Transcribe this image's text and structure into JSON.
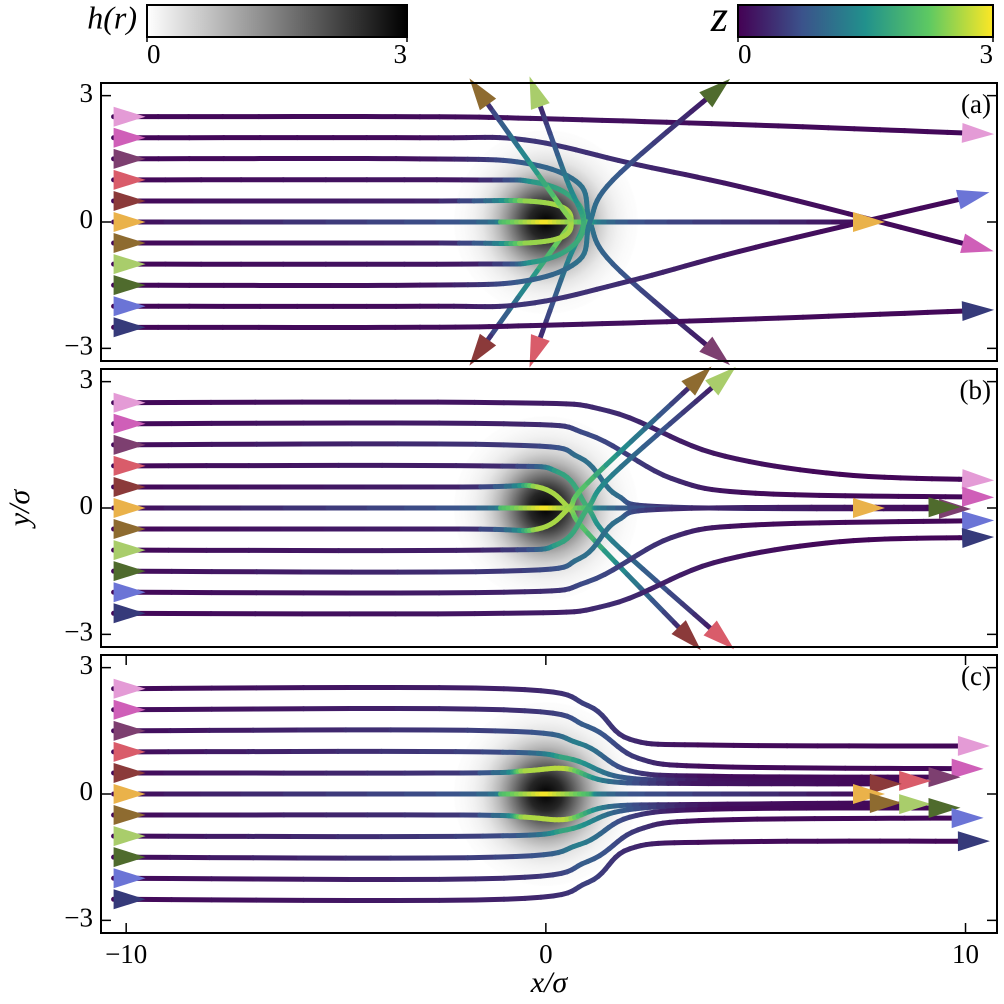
{
  "colorbars": [
    {
      "label": "h(r)",
      "colors": [
        "#ffffff",
        "#000000"
      ],
      "ticks": [
        0,
        3
      ]
    },
    {
      "label": "z",
      "colors": [
        "#440154",
        "#3b528b",
        "#21918c",
        "#5ec962",
        "#fde725"
      ],
      "ticks": [
        0,
        3
      ]
    }
  ],
  "chart_data": [
    {
      "type": "line",
      "label": "(a)",
      "xlim": [
        -10.6,
        10.75
      ],
      "ylim": [
        -3.3,
        3.3
      ],
      "yticks": [
        {
          "value": -3,
          "label": "−3"
        },
        0,
        3
      ],
      "series": [
        {
          "color": "#e49bd6",
          "x": [
            -10.3,
            -3,
            0,
            5,
            10.3
          ],
          "y": [
            2.5,
            2.5,
            2.45,
            2.3,
            2.1
          ],
          "z": [
            0.05,
            0.1,
            0.15,
            0.1,
            0.05
          ]
        },
        {
          "color": "#cf5fb8",
          "x": [
            -10.3,
            -3,
            -0.5,
            2,
            5,
            10.3
          ],
          "y": [
            2,
            2,
            1.95,
            1.4,
            0.75,
            -0.6
          ],
          "z": [
            0.05,
            0.1,
            0.5,
            0.4,
            0.15,
            0.05
          ]
        },
        {
          "color": "#7d3f70",
          "x": [
            -10.3,
            -3,
            -0.5,
            0.8,
            1.05,
            1.6,
            4.1
          ],
          "y": [
            1.5,
            1.5,
            1.4,
            0.9,
            0,
            -1,
            -3.15
          ],
          "z": [
            0.05,
            0.15,
            0.9,
            1.1,
            1.2,
            0.9,
            0.1
          ]
        },
        {
          "color": "#d95c6a",
          "x": [
            -10.3,
            -2,
            -0.3,
            0.6,
            0.9,
            0.5,
            -0.26
          ],
          "y": [
            1,
            1,
            0.95,
            0.6,
            0,
            -1,
            -3.1
          ],
          "z": [
            0.05,
            0.2,
            1.6,
            1.8,
            1.9,
            1.3,
            0.1
          ]
        },
        {
          "color": "#8b3a3a",
          "x": [
            -10.3,
            -2.5,
            -0.5,
            0.4,
            0.6,
            0.3,
            -1.6
          ],
          "y": [
            0.5,
            0.5,
            0.5,
            0.35,
            0,
            -0.45,
            -3.1
          ],
          "z": [
            0.05,
            0.3,
            2.5,
            2.6,
            2.6,
            2.4,
            0.1
          ]
        },
        {
          "color": "#eab24a",
          "x": [
            -10.3,
            -2,
            -1,
            0,
            1,
            2,
            7.7
          ],
          "y": [
            0,
            0,
            0,
            0,
            0,
            0,
            0
          ],
          "z": [
            0.05,
            0.8,
            2.1,
            3,
            2.1,
            0.8,
            0.05
          ]
        },
        {
          "color": "#8e6b30",
          "x": [
            -10.3,
            -2.5,
            -0.5,
            0.4,
            0.6,
            0.3,
            -1.6
          ],
          "y": [
            -0.5,
            -0.5,
            -0.5,
            -0.35,
            0,
            0.45,
            3.1
          ],
          "z": [
            0.05,
            0.3,
            2.5,
            2.6,
            2.6,
            2.4,
            0.1
          ]
        },
        {
          "color": "#a9cd6b",
          "x": [
            -10.3,
            -2,
            -0.3,
            0.6,
            0.9,
            0.5,
            -0.26
          ],
          "y": [
            -1,
            -1,
            -0.95,
            -0.6,
            0,
            1,
            3.1
          ],
          "z": [
            0.05,
            0.2,
            1.6,
            1.8,
            1.9,
            1.3,
            0.1
          ]
        },
        {
          "color": "#4f6b2d",
          "x": [
            -10.3,
            -3,
            -0.5,
            0.8,
            1.05,
            1.6,
            4.1
          ],
          "y": [
            -1.5,
            -1.5,
            -1.4,
            -0.9,
            0,
            1,
            3.15
          ],
          "z": [
            0.05,
            0.15,
            0.9,
            1.1,
            1.2,
            0.9,
            0.1
          ]
        },
        {
          "color": "#6b74d6",
          "x": [
            -10.3,
            -3,
            -0.5,
            2,
            5,
            10.2
          ],
          "y": [
            -2,
            -2,
            -1.95,
            -1.4,
            -0.6,
            0.62
          ],
          "z": [
            0.05,
            0.1,
            0.5,
            0.4,
            0.15,
            0.05
          ]
        },
        {
          "color": "#363a7a",
          "x": [
            -10.3,
            -3,
            0,
            5,
            10.3
          ],
          "y": [
            -2.5,
            -2.5,
            -2.45,
            -2.3,
            -2.1
          ],
          "z": [
            0.05,
            0.1,
            0.15,
            0.1,
            0.05
          ]
        }
      ]
    },
    {
      "type": "line",
      "label": "(b)",
      "ylabel": "y/σ",
      "xlim": [
        -10.6,
        10.75
      ],
      "ylim": [
        -3.3,
        3.3
      ],
      "yticks": [
        {
          "value": -3,
          "label": "−3"
        },
        0,
        3
      ],
      "series": [
        {
          "color": "#e49bd6",
          "x": [
            -10.3,
            -1,
            1.5,
            4,
            7,
            10.3
          ],
          "y": [
            2.5,
            2.5,
            2.3,
            1.3,
            0.8,
            0.67
          ],
          "z": [
            0.05,
            0.2,
            0.4,
            0.2,
            0.05,
            0.05
          ]
        },
        {
          "color": "#cf5fb8",
          "x": [
            -10.3,
            -1,
            1,
            3,
            5,
            10.3
          ],
          "y": [
            2,
            2,
            1.75,
            0.7,
            0.35,
            0.26
          ],
          "z": [
            0.05,
            0.3,
            0.7,
            0.4,
            0.1,
            0.05
          ]
        },
        {
          "color": "#7d3f70",
          "x": [
            -10.3,
            -1,
            0.8,
            1.7,
            3,
            9.75
          ],
          "y": [
            1.5,
            1.5,
            1.2,
            0.3,
            0.02,
            -0.02
          ],
          "z": [
            0.05,
            0.5,
            1.1,
            1.1,
            0.4,
            0.05
          ]
        },
        {
          "color": "#d95c6a",
          "x": [
            -10.3,
            -1.5,
            0.3,
            1,
            1.6,
            4.2
          ],
          "y": [
            1,
            1,
            0.85,
            0,
            -0.8,
            -3.1
          ],
          "z": [
            0.05,
            0.3,
            1.7,
            1.9,
            1.3,
            0.1
          ]
        },
        {
          "color": "#8b3a3a",
          "x": [
            -10.3,
            -2,
            -0.2,
            0.55,
            1,
            3.43
          ],
          "y": [
            0.5,
            0.5,
            0.5,
            0,
            -0.6,
            -3.1
          ],
          "z": [
            0.05,
            0.3,
            2.6,
            2.6,
            2.1,
            0.1
          ]
        },
        {
          "color": "#eab24a",
          "x": [
            -10.3,
            -2,
            -1,
            0,
            1,
            2,
            7.7
          ],
          "y": [
            0,
            0,
            0,
            0,
            0,
            0,
            0
          ],
          "z": [
            0.05,
            0.8,
            2.1,
            3,
            2.1,
            0.8,
            0.05
          ]
        },
        {
          "color": "#8e6b30",
          "x": [
            -10.3,
            -2,
            -0.2,
            0.55,
            1,
            3.67
          ],
          "y": [
            -0.5,
            -0.5,
            -0.5,
            0,
            0.6,
            3.1
          ],
          "z": [
            0.05,
            0.3,
            2.6,
            2.6,
            2.1,
            0.1
          ]
        },
        {
          "color": "#a9cd6b",
          "x": [
            -10.3,
            -1.5,
            0.3,
            1,
            1.6,
            4.24
          ],
          "y": [
            -1,
            -1,
            -0.85,
            0,
            0.8,
            3.1
          ],
          "z": [
            0.05,
            0.3,
            1.7,
            1.9,
            1.3,
            0.1
          ]
        },
        {
          "color": "#4f6b2d",
          "x": [
            -10.3,
            -1,
            0.8,
            1.7,
            3,
            9.5
          ],
          "y": [
            -1.5,
            -1.5,
            -1.2,
            -0.3,
            -0.02,
            0.02
          ],
          "z": [
            0.05,
            0.5,
            1.1,
            1.1,
            0.4,
            0.05
          ]
        },
        {
          "color": "#6b74d6",
          "x": [
            -10.3,
            -1,
            1,
            3,
            5,
            10.3
          ],
          "y": [
            -2,
            -2,
            -1.75,
            -0.7,
            -0.4,
            -0.3
          ],
          "z": [
            0.05,
            0.3,
            0.7,
            0.4,
            0.1,
            0.05
          ]
        },
        {
          "color": "#363a7a",
          "x": [
            -10.3,
            -1,
            1.5,
            4,
            7,
            10.3
          ],
          "y": [
            -2.5,
            -2.5,
            -2.3,
            -1.3,
            -0.8,
            -0.7
          ],
          "z": [
            0.05,
            0.2,
            0.4,
            0.2,
            0.05,
            0.05
          ]
        }
      ]
    },
    {
      "type": "line",
      "label": "(c)",
      "xlabel": "x/σ",
      "xlim": [
        -10.6,
        10.75
      ],
      "ylim": [
        -3.3,
        3.3
      ],
      "xticks": [
        {
          "value": -10,
          "label": "−10"
        },
        0,
        10
      ],
      "yticks": [
        {
          "value": -3,
          "label": "−3"
        },
        0,
        3
      ],
      "series": [
        {
          "color": "#e49bd6",
          "x": [
            -10.3,
            -1,
            1,
            2,
            4,
            10.2
          ],
          "y": [
            2.5,
            2.5,
            2.1,
            1.3,
            1.16,
            1.14
          ],
          "z": [
            0.05,
            0.3,
            0.6,
            0.4,
            0.1,
            0.05
          ]
        },
        {
          "color": "#cf5fb8",
          "x": [
            -10.3,
            -1,
            1,
            2.2,
            4,
            10.05
          ],
          "y": [
            2,
            2,
            1.6,
            0.85,
            0.65,
            0.6
          ],
          "z": [
            0.05,
            0.4,
            0.9,
            0.5,
            0.1,
            0.05
          ]
        },
        {
          "color": "#7d3f70",
          "x": [
            -10.3,
            -1.2,
            0.8,
            2,
            4,
            9.5
          ],
          "y": [
            1.5,
            1.5,
            1.2,
            0.55,
            0.42,
            0.4
          ],
          "z": [
            0.05,
            0.6,
            1.3,
            0.6,
            0.1,
            0.05
          ]
        },
        {
          "color": "#d95c6a",
          "x": [
            -10.3,
            -1.5,
            0.5,
            1.8,
            4,
            8.8
          ],
          "y": [
            1,
            1,
            0.85,
            0.4,
            0.32,
            0.31
          ],
          "z": [
            0.05,
            0.6,
            1.8,
            0.9,
            0.15,
            0.05
          ]
        },
        {
          "color": "#8b3a3a",
          "x": [
            -10.3,
            -2,
            -0.5,
            0.5,
            1.5,
            3.5,
            8.1
          ],
          "y": [
            0.5,
            0.5,
            0.55,
            0.6,
            0.3,
            0.25,
            0.24
          ],
          "z": [
            0.05,
            0.5,
            2.6,
            2.7,
            1.1,
            0.2,
            0.05
          ]
        },
        {
          "color": "#eab24a",
          "x": [
            -10.3,
            -2,
            -1,
            0,
            1,
            2,
            7.7
          ],
          "y": [
            0,
            0,
            0,
            0,
            0,
            0,
            0
          ],
          "z": [
            0.05,
            0.8,
            2.1,
            3,
            2.1,
            0.8,
            0.05
          ]
        },
        {
          "color": "#8e6b30",
          "x": [
            -10.3,
            -2,
            -0.5,
            0.5,
            1.5,
            3.5,
            8.1
          ],
          "y": [
            -0.5,
            -0.5,
            -0.55,
            -0.6,
            -0.3,
            -0.25,
            -0.21
          ],
          "z": [
            0.05,
            0.5,
            2.6,
            2.7,
            1.1,
            0.2,
            0.05
          ]
        },
        {
          "color": "#a9cd6b",
          "x": [
            -10.3,
            -1.5,
            0.5,
            1.8,
            4,
            8.8
          ],
          "y": [
            -1,
            -1,
            -0.85,
            -0.4,
            -0.26,
            -0.24
          ],
          "z": [
            0.05,
            0.6,
            1.8,
            0.9,
            0.15,
            0.05
          ]
        },
        {
          "color": "#4f6b2d",
          "x": [
            -10.3,
            -1.2,
            0.8,
            2,
            4,
            9.5
          ],
          "y": [
            -1.5,
            -1.5,
            -1.2,
            -0.55,
            -0.36,
            -0.33
          ],
          "z": [
            0.05,
            0.6,
            1.3,
            0.6,
            0.1,
            0.05
          ]
        },
        {
          "color": "#6b74d6",
          "x": [
            -10.3,
            -1,
            1,
            2.2,
            4,
            10.05
          ],
          "y": [
            -2,
            -2,
            -1.6,
            -0.85,
            -0.62,
            -0.57
          ],
          "z": [
            0.05,
            0.4,
            0.9,
            0.5,
            0.1,
            0.05
          ]
        },
        {
          "color": "#363a7a",
          "x": [
            -10.3,
            -1,
            1,
            2,
            4,
            10.2
          ],
          "y": [
            -2.5,
            -2.5,
            -2.1,
            -1.3,
            -1.14,
            -1.12
          ],
          "z": [
            0.05,
            0.3,
            0.6,
            0.4,
            0.1,
            0.05
          ]
        }
      ]
    }
  ]
}
